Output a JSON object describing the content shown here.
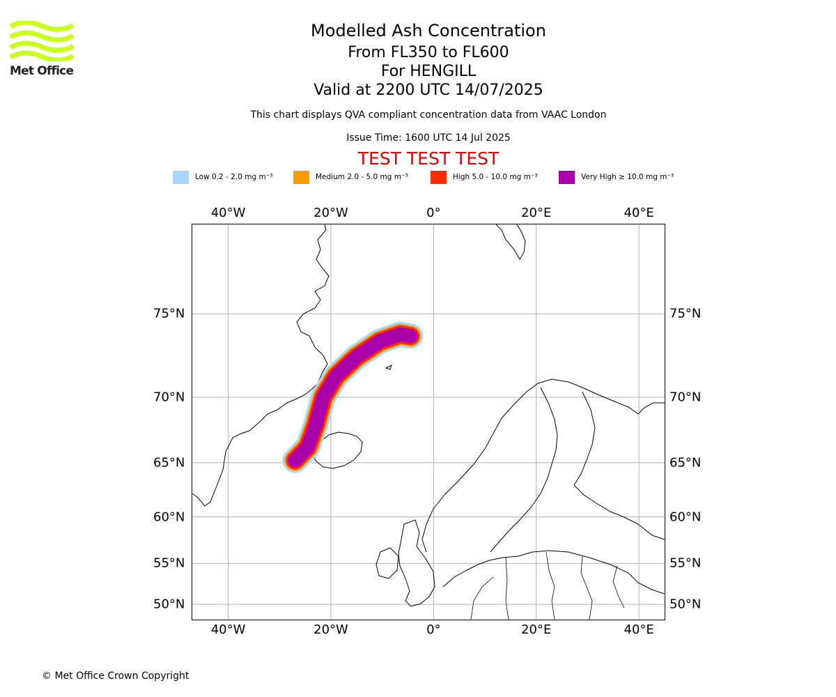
{
  "logo": {
    "text": "Met Office",
    "wave_color": "#c8ff1e"
  },
  "header": {
    "title": "Modelled Ash Concentration",
    "flight_levels": "From FL350 to FL600",
    "volcano": "For HENGILL",
    "valid_time": "Valid at 2200 UTC 14/07/2025",
    "note": "This chart displays QVA compliant concentration data from VAAC London",
    "issue_time": "Issue Time: 1600 UTC 14 Jul 2025",
    "test_banner": "TEST TEST TEST"
  },
  "legend": [
    {
      "label": "Low 0.2 - 2.0 mg m⁻³",
      "color": "#a6d8ff"
    },
    {
      "label": "Medium 2.0 - 5.0 mg m⁻³",
      "color": "#ff9c00"
    },
    {
      "label": "High 5.0 - 10.0 mg m⁻³",
      "color": "#ff2a00"
    },
    {
      "label": "Very High  ≥  10.0 mg m⁻³",
      "color": "#aa00aa"
    }
  ],
  "map": {
    "projection": "Mercator",
    "lon_range": [
      -47,
      45
    ],
    "lat_range": [
      48,
      79
    ],
    "grid": true,
    "lon_ticks": [
      {
        "value": -40,
        "label": "40°W"
      },
      {
        "value": -20,
        "label": "20°W"
      },
      {
        "value": 0,
        "label": "0°"
      },
      {
        "value": 20,
        "label": "20°E"
      },
      {
        "value": 40,
        "label": "40°E"
      }
    ],
    "lat_ticks": [
      {
        "value": 75,
        "label": "75°N"
      },
      {
        "value": 70,
        "label": "70°N"
      },
      {
        "value": 65,
        "label": "65°N"
      },
      {
        "value": 60,
        "label": "60°N"
      },
      {
        "value": 55,
        "label": "55°N"
      },
      {
        "value": 50,
        "label": "50°N"
      }
    ],
    "ash_plume_path": [
      {
        "lon": -27.0,
        "lat": 65.2
      },
      {
        "lon": -24.5,
        "lat": 66.3
      },
      {
        "lon": -23.0,
        "lat": 68.0
      },
      {
        "lon": -21.5,
        "lat": 70.0
      },
      {
        "lon": -19.0,
        "lat": 71.4
      },
      {
        "lon": -15.0,
        "lat": 72.6
      },
      {
        "lon": -10.5,
        "lat": 73.5
      },
      {
        "lon": -6.5,
        "lat": 73.9
      },
      {
        "lon": -4.5,
        "lat": 73.8
      }
    ]
  },
  "footer": {
    "copyright": "© Met Office Crown Copyright"
  }
}
